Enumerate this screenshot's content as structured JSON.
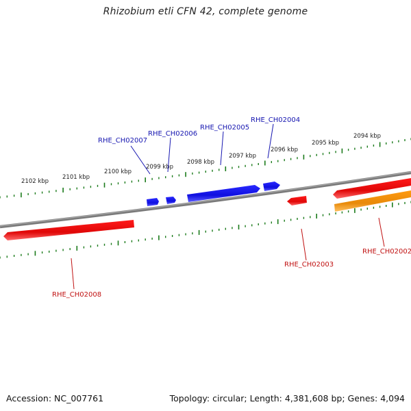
{
  "title": "Rhizobium etli CFN 42, complete genome",
  "footer": {
    "accession": "Accession: NC_007761",
    "info": "Topology: circular; Length: 4,381,608 bp; Genes: 4,094"
  },
  "colors": {
    "backbone": "#7f7f7f",
    "ticks": "#1a7a1a",
    "forward_gene": "#1515e0",
    "reverse_gene": "#e81010",
    "highlight_gene": "#f0900f",
    "forward_label": "#1515b0",
    "reverse_label": "#c01010"
  },
  "scale": {
    "unit": "kbp",
    "inner_labels": [
      "2102 kbp",
      "2101 kbp",
      "2100 kbp",
      "2099 kbp",
      "2098 kbp",
      "2097 kbp",
      "2096 kbp",
      "2095 kbp",
      "2094 kbp"
    ]
  },
  "genes": [
    {
      "id": "RHE_CH02002",
      "strand": "reverse",
      "color": "reverse_gene"
    },
    {
      "id": "RHE_CH02002",
      "strand": "reverse",
      "color": "highlight_gene"
    },
    {
      "id": "RHE_CH02003",
      "strand": "reverse",
      "color": "reverse_gene"
    },
    {
      "id": "RHE_CH02004",
      "strand": "forward",
      "color": "forward_gene"
    },
    {
      "id": "RHE_CH02005",
      "strand": "forward",
      "color": "forward_gene"
    },
    {
      "id": "RHE_CH02006",
      "strand": "forward",
      "color": "forward_gene"
    },
    {
      "id": "RHE_CH02007",
      "strand": "forward",
      "color": "forward_gene"
    },
    {
      "id": "RHE_CH02008",
      "strand": "reverse",
      "color": "reverse_gene"
    }
  ]
}
